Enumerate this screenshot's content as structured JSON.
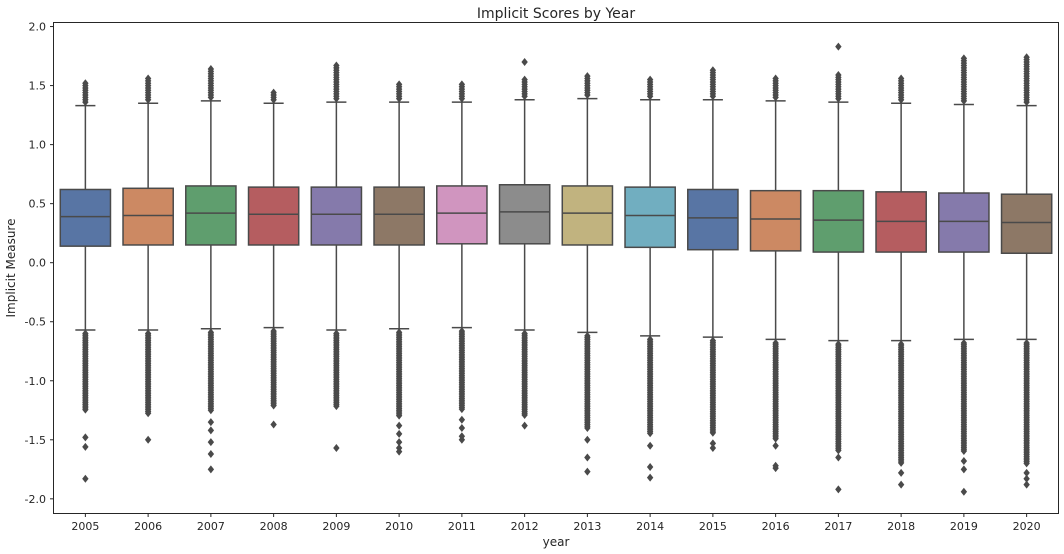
{
  "chart_data": {
    "type": "box",
    "title": "Implicit Scores by Year",
    "xlabel": "year",
    "ylabel": "Implicit Measure",
    "ylim": [
      -2.12,
      2.03
    ],
    "y_ticks": [
      2.0,
      1.5,
      1.0,
      0.5,
      0.0,
      -0.5,
      -1.0,
      -1.5,
      -2.0
    ],
    "y_tick_labels": [
      "2.0",
      "1.5",
      "1.0",
      "0.5",
      "0.0",
      "-0.5",
      "-1.0",
      "-1.5",
      "-2.0"
    ],
    "grid": false,
    "categories": [
      "2005",
      "2006",
      "2007",
      "2008",
      "2009",
      "2010",
      "2011",
      "2012",
      "2013",
      "2014",
      "2015",
      "2016",
      "2017",
      "2018",
      "2019",
      "2020"
    ],
    "boxes": [
      {
        "year": "2005",
        "color": "#5875a4",
        "whisker_low": -0.57,
        "q1": 0.14,
        "median": 0.39,
        "q3": 0.62,
        "whisker_high": 1.33,
        "upper_outliers_max": 1.52,
        "lower_outliers_min": -1.25,
        "extreme_outliers": [
          -1.48,
          -1.56,
          -1.83
        ]
      },
      {
        "year": "2006",
        "color": "#cc8963",
        "whisker_low": -0.57,
        "q1": 0.15,
        "median": 0.4,
        "q3": 0.63,
        "whisker_high": 1.35,
        "upper_outliers_max": 1.57,
        "lower_outliers_min": -1.28,
        "extreme_outliers": [
          -1.5
        ]
      },
      {
        "year": "2007",
        "color": "#5f9e6e",
        "whisker_low": -0.56,
        "q1": 0.15,
        "median": 0.42,
        "q3": 0.65,
        "whisker_high": 1.37,
        "upper_outliers_max": 1.64,
        "lower_outliers_min": -1.25,
        "extreme_outliers": [
          -1.35,
          -1.42,
          -1.52,
          -1.62,
          -1.75
        ]
      },
      {
        "year": "2008",
        "color": "#b55d60",
        "whisker_low": -0.55,
        "q1": 0.15,
        "median": 0.41,
        "q3": 0.64,
        "whisker_high": 1.35,
        "upper_outliers_max": 1.45,
        "lower_outliers_min": -1.22,
        "extreme_outliers": [
          -1.37
        ]
      },
      {
        "year": "2009",
        "color": "#857aab",
        "whisker_low": -0.57,
        "q1": 0.15,
        "median": 0.41,
        "q3": 0.64,
        "whisker_high": 1.36,
        "upper_outliers_max": 1.67,
        "lower_outliers_min": -1.22,
        "extreme_outliers": [
          -1.57
        ]
      },
      {
        "year": "2010",
        "color": "#8d7866",
        "whisker_low": -0.56,
        "q1": 0.15,
        "median": 0.41,
        "q3": 0.64,
        "whisker_high": 1.36,
        "upper_outliers_max": 1.52,
        "lower_outliers_min": -1.3,
        "extreme_outliers": [
          -1.38,
          -1.45,
          -1.52,
          -1.57,
          -1.6
        ]
      },
      {
        "year": "2011",
        "color": "#d095bf",
        "whisker_low": -0.55,
        "q1": 0.16,
        "median": 0.42,
        "q3": 0.65,
        "whisker_high": 1.36,
        "upper_outliers_max": 1.52,
        "lower_outliers_min": -1.25,
        "extreme_outliers": [
          -1.33,
          -1.4,
          -1.47,
          -1.5
        ]
      },
      {
        "year": "2012",
        "color": "#8c8c8c",
        "whisker_low": -0.57,
        "q1": 0.16,
        "median": 0.43,
        "q3": 0.66,
        "whisker_high": 1.38,
        "upper_outliers_max": 1.56,
        "lower_outliers_min": -1.3,
        "extreme_outliers": [
          -1.38,
          1.7
        ]
      },
      {
        "year": "2013",
        "color": "#c1b37f",
        "whisker_low": -0.59,
        "q1": 0.15,
        "median": 0.42,
        "q3": 0.65,
        "whisker_high": 1.39,
        "upper_outliers_max": 1.58,
        "lower_outliers_min": -1.4,
        "extreme_outliers": [
          -1.5,
          -1.65,
          -1.77
        ]
      },
      {
        "year": "2014",
        "color": "#71aec0",
        "whisker_low": -0.62,
        "q1": 0.13,
        "median": 0.4,
        "q3": 0.64,
        "whisker_high": 1.38,
        "upper_outliers_max": 1.56,
        "lower_outliers_min": -1.45,
        "extreme_outliers": [
          -1.55,
          -1.73,
          -1.82
        ]
      },
      {
        "year": "2015",
        "color": "#5875a4",
        "whisker_low": -0.63,
        "q1": 0.11,
        "median": 0.38,
        "q3": 0.62,
        "whisker_high": 1.38,
        "upper_outliers_max": 1.64,
        "lower_outliers_min": -1.45,
        "extreme_outliers": [
          -1.53,
          -1.57
        ]
      },
      {
        "year": "2016",
        "color": "#cc8963",
        "whisker_low": -0.65,
        "q1": 0.1,
        "median": 0.37,
        "q3": 0.61,
        "whisker_high": 1.37,
        "upper_outliers_max": 1.57,
        "lower_outliers_min": -1.5,
        "extreme_outliers": [
          -1.55,
          -1.72,
          -1.74
        ]
      },
      {
        "year": "2017",
        "color": "#5f9e6e",
        "whisker_low": -0.66,
        "q1": 0.09,
        "median": 0.36,
        "q3": 0.61,
        "whisker_high": 1.36,
        "upper_outliers_max": 1.6,
        "lower_outliers_min": -1.6,
        "extreme_outliers": [
          -1.65,
          -1.92,
          1.83
        ]
      },
      {
        "year": "2018",
        "color": "#b55d60",
        "whisker_low": -0.66,
        "q1": 0.09,
        "median": 0.35,
        "q3": 0.6,
        "whisker_high": 1.35,
        "upper_outliers_max": 1.56,
        "lower_outliers_min": -1.7,
        "extreme_outliers": [
          -1.78,
          -1.88
        ]
      },
      {
        "year": "2019",
        "color": "#857aab",
        "whisker_low": -0.65,
        "q1": 0.09,
        "median": 0.35,
        "q3": 0.59,
        "whisker_high": 1.34,
        "upper_outliers_max": 1.73,
        "lower_outliers_min": -1.6,
        "extreme_outliers": [
          -1.68,
          -1.75,
          -1.94
        ]
      },
      {
        "year": "2020",
        "color": "#8d7866",
        "whisker_low": -0.65,
        "q1": 0.08,
        "median": 0.34,
        "q3": 0.58,
        "whisker_high": 1.33,
        "upper_outliers_max": 1.75,
        "lower_outliers_min": -1.7,
        "extreme_outliers": [
          -1.78,
          -1.83,
          -1.88
        ]
      }
    ]
  }
}
